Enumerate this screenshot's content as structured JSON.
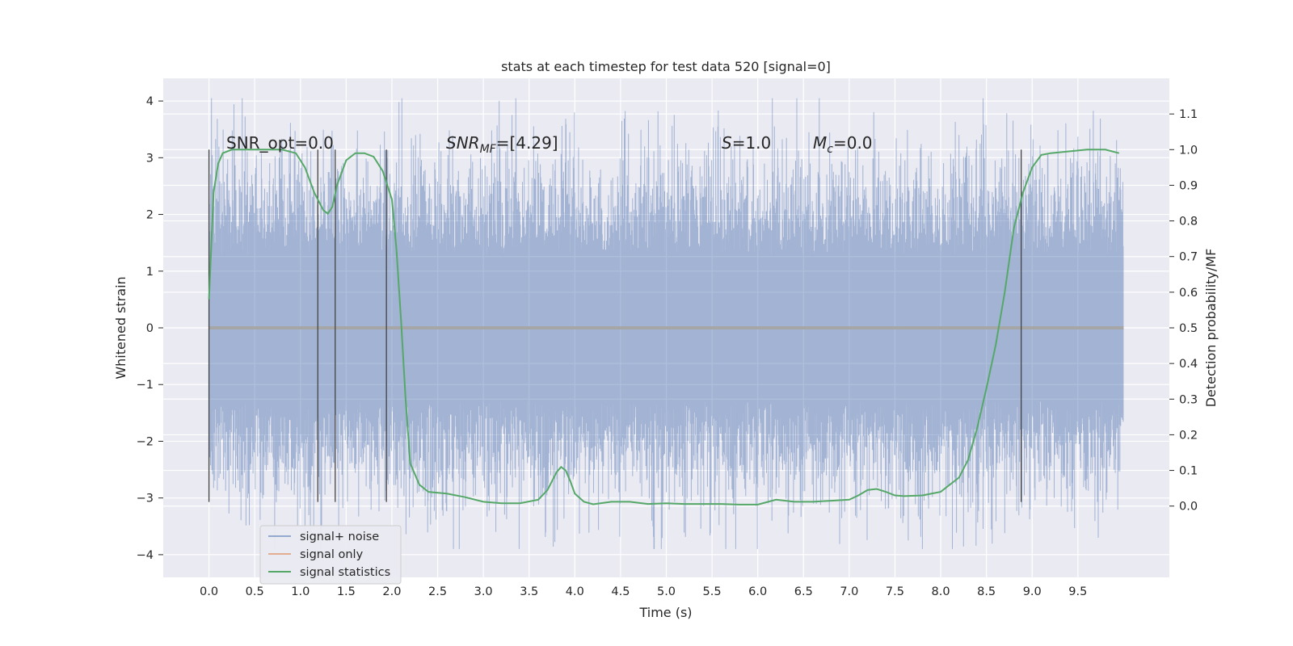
{
  "chart_data": {
    "type": "line",
    "title": "stats at each timestep for test data 520 [signal=0]",
    "xlabel": "Time (s)",
    "ylabel": "Whitened strain",
    "y2label": "Detection probability/MF",
    "xlim": [
      -0.5,
      10.5
    ],
    "ylim": [
      -4.4,
      4.4
    ],
    "y2lim": [
      -0.2,
      1.2
    ],
    "xticks": [
      "0.0",
      "0.5",
      "1.0",
      "1.5",
      "2.0",
      "2.5",
      "3.0",
      "3.5",
      "4.0",
      "4.5",
      "5.0",
      "5.5",
      "6.0",
      "6.5",
      "7.0",
      "7.5",
      "8.0",
      "8.5",
      "9.0",
      "9.5"
    ],
    "yticks": [
      4,
      3,
      2,
      1,
      0,
      -1,
      -2,
      -3,
      -4
    ],
    "yticklabels": [
      "4",
      "3",
      "2",
      "1",
      "0",
      "−1",
      "−2",
      "−3",
      "−4"
    ],
    "y2ticks": [
      "1.1",
      "1.0",
      "0.9",
      "0.8",
      "0.7",
      "0.6",
      "0.5",
      "0.4",
      "0.3",
      "0.2",
      "0.1",
      "0.0"
    ],
    "grid": true,
    "legend_position": "lower-left",
    "series": [
      {
        "name": "signal+ noise",
        "color": "#4c72b0",
        "description_only_visual": "dense whitened strain noise between about -3 and 3.5, x from 0 to 10"
      },
      {
        "name": "signal only",
        "color": "#dd8452",
        "values": [
          0,
          0
        ]
      },
      {
        "name": "signal statistics",
        "color": "#55a868",
        "x": [
          0.0,
          0.05,
          0.1,
          0.15,
          0.25,
          0.4,
          0.6,
          0.8,
          0.95,
          1.05,
          1.15,
          1.25,
          1.3,
          1.35,
          1.4,
          1.5,
          1.6,
          1.7,
          1.8,
          1.9,
          2.0,
          2.05,
          2.1,
          2.15,
          2.2,
          2.3,
          2.4,
          2.6,
          2.8,
          3.0,
          3.2,
          3.4,
          3.6,
          3.7,
          3.8,
          3.85,
          3.9,
          3.95,
          4.0,
          4.1,
          4.2,
          4.4,
          4.6,
          4.8,
          5.0,
          5.2,
          5.4,
          5.6,
          5.8,
          6.0,
          6.2,
          6.4,
          6.6,
          6.8,
          7.0,
          7.1,
          7.2,
          7.3,
          7.4,
          7.5,
          7.6,
          7.8,
          8.0,
          8.2,
          8.3,
          8.4,
          8.5,
          8.6,
          8.7,
          8.8,
          8.9,
          9.0,
          9.1,
          9.2,
          9.4,
          9.6,
          9.8,
          9.95
        ],
        "y": [
          0.58,
          0.88,
          0.96,
          0.99,
          1.0,
          1.0,
          1.0,
          1.0,
          0.99,
          0.95,
          0.88,
          0.83,
          0.82,
          0.84,
          0.9,
          0.97,
          0.99,
          0.99,
          0.98,
          0.94,
          0.86,
          0.72,
          0.52,
          0.3,
          0.12,
          0.06,
          0.04,
          0.035,
          0.025,
          0.012,
          0.008,
          0.008,
          0.018,
          0.045,
          0.095,
          0.11,
          0.1,
          0.07,
          0.035,
          0.012,
          0.005,
          0.012,
          0.012,
          0.006,
          0.008,
          0.006,
          0.006,
          0.006,
          0.004,
          0.004,
          0.018,
          0.012,
          0.012,
          0.015,
          0.018,
          0.03,
          0.045,
          0.048,
          0.04,
          0.03,
          0.028,
          0.03,
          0.04,
          0.08,
          0.13,
          0.22,
          0.33,
          0.45,
          0.6,
          0.78,
          0.88,
          0.95,
          0.985,
          0.99,
          0.995,
          1.0,
          1.0,
          0.99
        ]
      }
    ],
    "vlines": [
      0.0,
      1.19,
      1.38,
      1.94,
      8.88
    ],
    "annotations": [
      {
        "text": "SNR_opt=0.0"
      },
      {
        "text_main": "SNR",
        "text_sub": "MF",
        "text_rest": "=[4.29]"
      },
      {
        "text_main": "S",
        "text_rest": "=1.0"
      },
      {
        "text_main": "M",
        "text_sub": "c",
        "text_rest": "=0.0"
      }
    ]
  }
}
